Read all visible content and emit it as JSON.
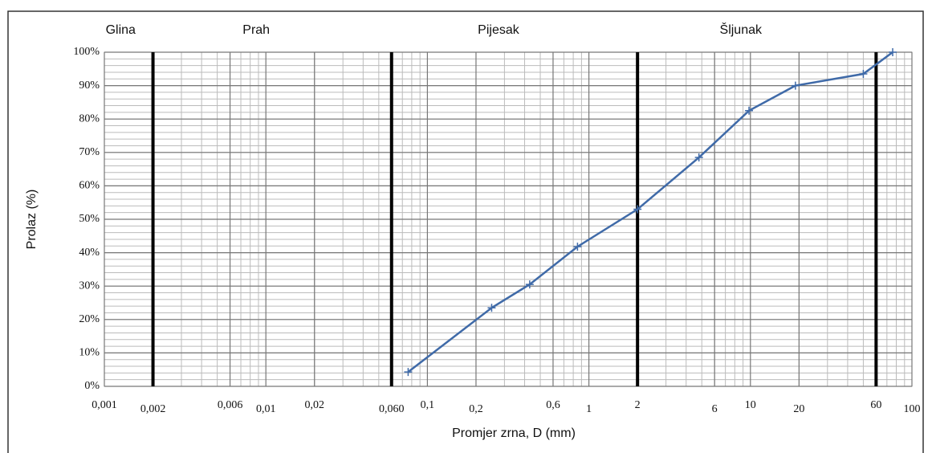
{
  "chart_data": {
    "type": "line",
    "ylabel": "Prolaz  (%)",
    "xlabel": "Promjer zrna, D (mm)",
    "log_x": true,
    "grid": true,
    "minor_grid": true,
    "zones": [
      "Glina",
      "Prah",
      "Pijesak",
      "Šljunak"
    ],
    "boundaries": [
      0.002,
      0.06,
      2,
      60
    ],
    "xlim": [
      0.001,
      100
    ],
    "ylim": [
      0,
      100
    ],
    "xticks": [
      {
        "value": 0.001,
        "label": "0,001"
      },
      {
        "value": 0.002,
        "label": "0,002"
      },
      {
        "value": 0.006,
        "label": "0,006"
      },
      {
        "value": 0.01,
        "label": "0,01"
      },
      {
        "value": 0.02,
        "label": "0,02"
      },
      {
        "value": 0.06,
        "label": "0,060"
      },
      {
        "value": 0.1,
        "label": "0,1"
      },
      {
        "value": 0.2,
        "label": "0,2"
      },
      {
        "value": 0.6,
        "label": "0,6"
      },
      1,
      2,
      6,
      10,
      20,
      60,
      100
    ],
    "yticks": [
      {
        "value": 0,
        "label": "0%"
      },
      {
        "value": 10,
        "label": "10%"
      },
      {
        "value": 20,
        "label": "20%"
      },
      {
        "value": 30,
        "label": "30%"
      },
      {
        "value": 40,
        "label": "40%"
      },
      {
        "value": 50,
        "label": "50%"
      },
      {
        "value": 60,
        "label": "60%"
      },
      {
        "value": 70,
        "label": "70%"
      },
      {
        "value": 80,
        "label": "80%"
      },
      {
        "value": 90,
        "label": "90%"
      },
      {
        "value": 100,
        "label": "100%"
      }
    ],
    "series": [
      {
        "color": "#3f6aa8",
        "x": [
          0.076,
          0.25,
          0.43,
          0.85,
          2,
          4.8,
          9.8,
          19,
          50,
          76
        ],
        "values": [
          4.3,
          23.5,
          30.5,
          41.8,
          53,
          68.5,
          82.5,
          90,
          93.5,
          100
        ]
      }
    ]
  }
}
